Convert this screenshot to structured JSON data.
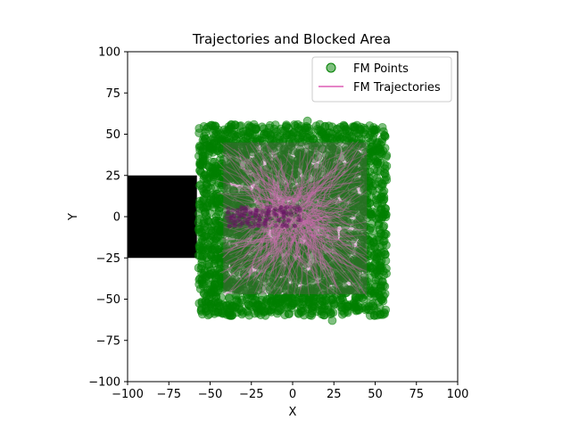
{
  "chart_data": {
    "type": "scatter",
    "title": "Trajectories and Blocked Area",
    "xlabel": "X",
    "ylabel": "Y",
    "xlim": [
      -100,
      100
    ],
    "ylim": [
      -100,
      100
    ],
    "xticks": [
      -100,
      -75,
      -50,
      -25,
      0,
      25,
      50,
      75,
      100
    ],
    "yticks": [
      -100,
      -75,
      -50,
      -25,
      0,
      25,
      50,
      75,
      100
    ],
    "xtick_labels": [
      "−100",
      "−75",
      "−50",
      "−25",
      "0",
      "25",
      "50",
      "75",
      "100"
    ],
    "ytick_labels": [
      "−100",
      "−75",
      "−50",
      "−25",
      "0",
      "25",
      "50",
      "75",
      "100"
    ],
    "grid": false,
    "legend_position": "top-right",
    "blocked_area": {
      "x": [
        -100,
        -58
      ],
      "y": [
        -25,
        25
      ],
      "color": "#000000"
    },
    "series": [
      {
        "name": "FM Points",
        "kind": "scatter",
        "color": "#008000",
        "region": {
          "x": [
            -57,
            57
          ],
          "y": [
            -60,
            56
          ]
        },
        "points": [
          [
            -56,
            33
          ],
          [
            -57,
            -31
          ],
          [
            -55,
            -28
          ],
          [
            -54,
            -41
          ],
          [
            -53,
            47
          ],
          [
            -52,
            -48
          ],
          [
            -50,
            40
          ],
          [
            -49,
            -55
          ],
          [
            -47,
            55
          ],
          [
            -45,
            50
          ],
          [
            -45,
            -52
          ],
          [
            -42,
            -54
          ],
          [
            -40,
            52
          ],
          [
            -38,
            53
          ],
          [
            -35,
            -55
          ],
          [
            -33,
            50
          ],
          [
            -31,
            -57
          ],
          [
            -28,
            52
          ],
          [
            -26,
            -54
          ],
          [
            -22,
            53
          ],
          [
            -20,
            -56
          ],
          [
            -17,
            50
          ],
          [
            -15,
            51
          ],
          [
            -12,
            -54
          ],
          [
            -8,
            -57
          ],
          [
            -6,
            52
          ],
          [
            -3,
            -55
          ],
          [
            0,
            50
          ],
          [
            3,
            54
          ],
          [
            6,
            -53
          ],
          [
            9,
            58
          ],
          [
            12,
            -55
          ],
          [
            15,
            53
          ],
          [
            18,
            -56
          ],
          [
            22,
            55
          ],
          [
            24,
            -63
          ],
          [
            23,
            -59
          ],
          [
            27,
            50
          ],
          [
            30,
            -55
          ],
          [
            33,
            52
          ],
          [
            37,
            -53
          ],
          [
            40,
            50
          ],
          [
            43,
            -50
          ],
          [
            46,
            48
          ],
          [
            50,
            -46
          ],
          [
            52,
            45
          ],
          [
            54,
            -45
          ],
          [
            55,
            -33
          ],
          [
            56,
            -23
          ],
          [
            56,
            29
          ],
          [
            56,
            26
          ],
          [
            55,
            10
          ],
          [
            55,
            -15
          ],
          [
            54,
            38
          ],
          [
            53,
            2
          ],
          [
            54,
            20
          ],
          [
            52,
            -5
          ],
          [
            -52,
            20
          ],
          [
            -51,
            -20
          ],
          [
            -50,
            10
          ],
          [
            -49,
            -10
          ],
          [
            -48,
            28
          ],
          [
            -50,
            -35
          ],
          [
            -53,
            -12
          ],
          [
            -52,
            14
          ]
        ]
      },
      {
        "name": "FM Trajectories",
        "kind": "line",
        "color": "#e377c2"
      }
    ]
  }
}
